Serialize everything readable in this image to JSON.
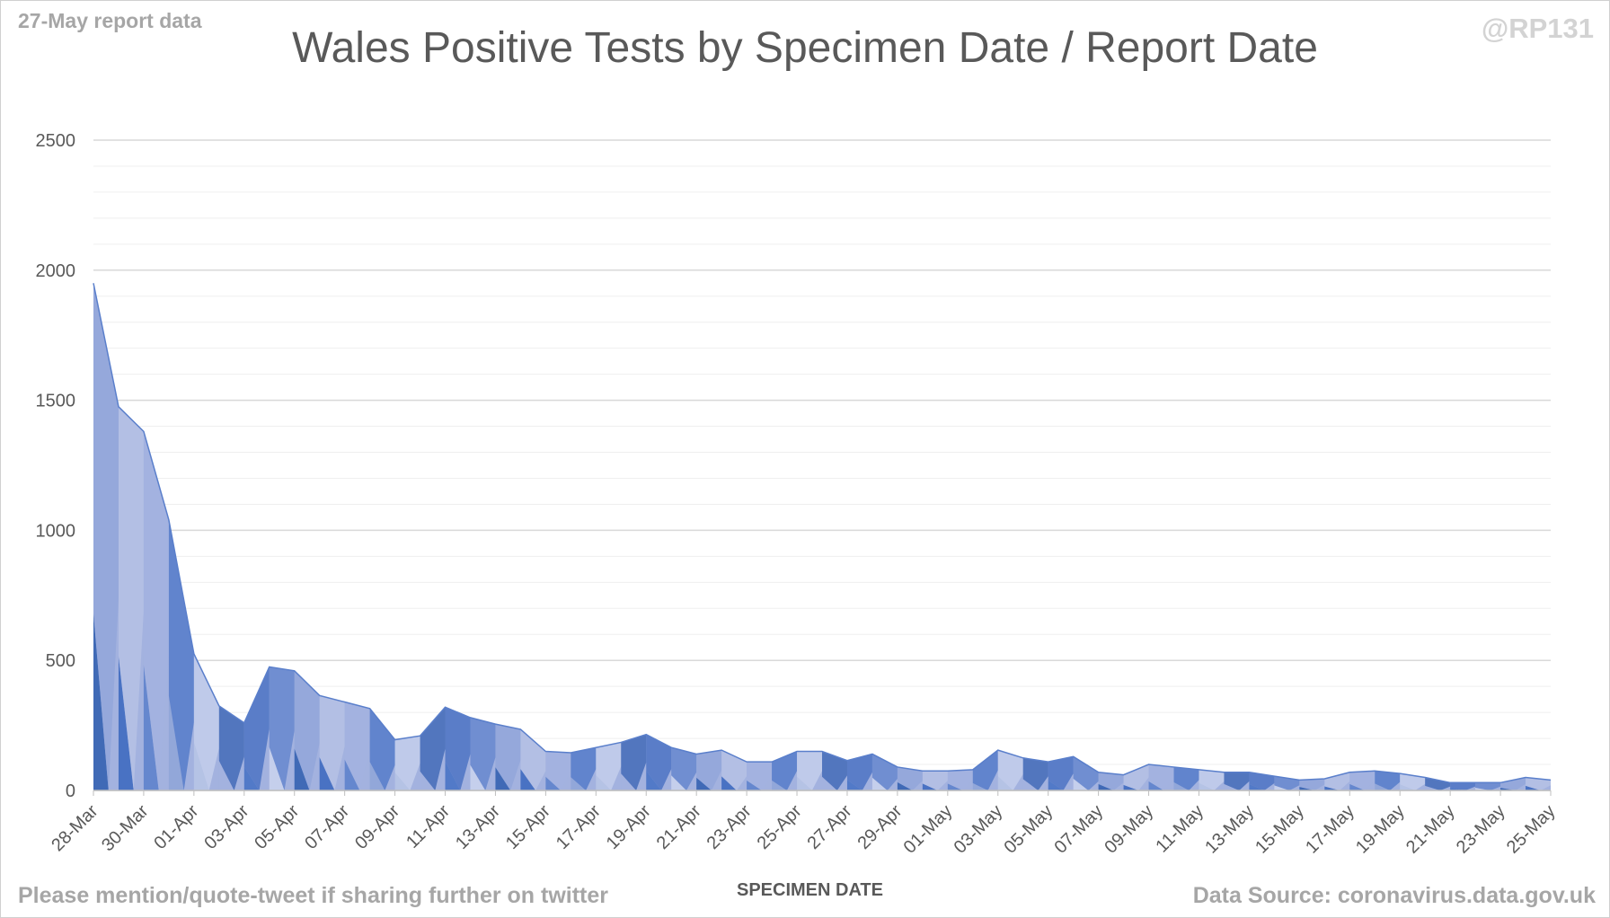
{
  "header": {
    "report_label": "27-May report data",
    "handle": "@RP131"
  },
  "footer": {
    "note": "Please mention/quote-tweet if sharing further on twitter",
    "source": "Data Source: coronavirus.data.gov.uk"
  },
  "colors": {
    "palette": [
      "#2F5DAF",
      "#3A66BE",
      "#5A7FCB",
      "#8FA4D8",
      "#B9C5E6",
      "#A3B2DF",
      "#4470C4",
      "#CBD4EE"
    ],
    "major_grid": "#d9d9d9",
    "minor_grid": "#efefef",
    "axis": "#bfbfbf",
    "text": "#595959"
  },
  "chart_data": {
    "type": "area",
    "title": "Wales Positive Tests by Specimen Date / Report Date",
    "xlabel": "SPECIMEN DATE",
    "ylabel": "",
    "ylim": [
      0,
      2500
    ],
    "yticks": [
      0,
      500,
      1000,
      1500,
      2000,
      2500
    ],
    "grid": true,
    "start_date": "2020-03-28",
    "x_tick_labels": [
      "28-Mar",
      "30-Mar",
      "01-Apr",
      "03-Apr",
      "05-Apr",
      "07-Apr",
      "09-Apr",
      "11-Apr",
      "13-Apr",
      "15-Apr",
      "17-Apr",
      "19-Apr",
      "21-Apr",
      "23-Apr",
      "25-Apr",
      "27-Apr",
      "29-Apr",
      "01-May",
      "03-May",
      "05-May",
      "07-May",
      "09-May",
      "11-May",
      "13-May",
      "15-May",
      "17-May",
      "19-May",
      "21-May",
      "23-May",
      "25-May"
    ],
    "x": [
      "28-Mar",
      "29-Mar",
      "30-Mar",
      "31-Mar",
      "01-Apr",
      "02-Apr",
      "03-Apr",
      "04-Apr",
      "05-Apr",
      "06-Apr",
      "07-Apr",
      "08-Apr",
      "09-Apr",
      "10-Apr",
      "11-Apr",
      "12-Apr",
      "13-Apr",
      "14-Apr",
      "15-Apr",
      "16-Apr",
      "17-Apr",
      "18-Apr",
      "19-Apr",
      "20-Apr",
      "21-Apr",
      "22-Apr",
      "23-Apr",
      "24-Apr",
      "25-Apr",
      "26-Apr",
      "27-Apr",
      "28-Apr",
      "29-Apr",
      "30-Apr",
      "01-May",
      "02-May",
      "03-May",
      "04-May",
      "05-May",
      "06-May",
      "07-May",
      "08-May",
      "09-May",
      "10-May",
      "11-May",
      "12-May",
      "13-May",
      "14-May",
      "15-May",
      "16-May",
      "17-May",
      "18-May",
      "19-May",
      "20-May",
      "21-May",
      "22-May",
      "23-May",
      "24-May",
      "25-May"
    ],
    "values": [
      1950,
      1475,
      1380,
      1040,
      525,
      325,
      260,
      475,
      460,
      365,
      340,
      315,
      195,
      210,
      320,
      280,
      255,
      235,
      150,
      145,
      165,
      185,
      215,
      165,
      140,
      155,
      110,
      110,
      150,
      150,
      115,
      140,
      90,
      75,
      75,
      80,
      155,
      125,
      110,
      130,
      70,
      60,
      100,
      90,
      80,
      70,
      70,
      55,
      40,
      45,
      70,
      75,
      65,
      50,
      30,
      30,
      30,
      50,
      40
    ]
  }
}
